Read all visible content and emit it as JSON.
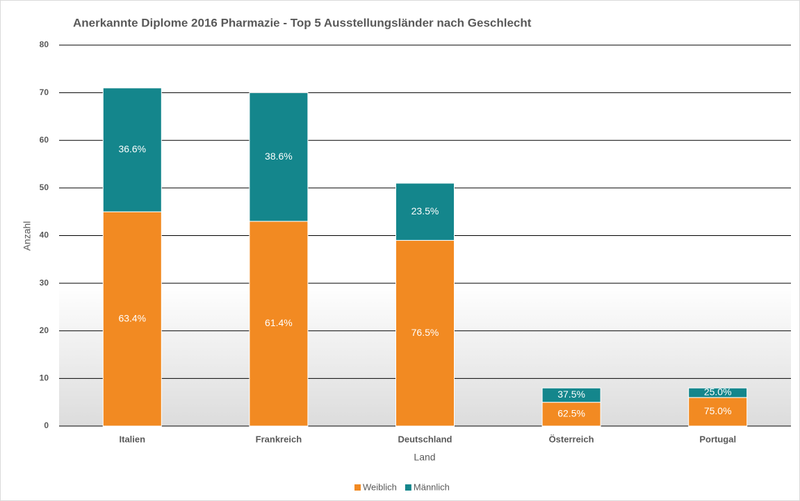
{
  "chart_data": {
    "type": "stacked_bar",
    "title": "Anerkannte Diplome 2016 Pharmazie - Top 5 Ausstellungsländer nach Geschlecht",
    "x_label": "Land",
    "y_label": "Anzahl",
    "categories": [
      "Italien",
      "Frankreich",
      "Deutschland",
      "Österreich",
      "Portugal"
    ],
    "series": [
      {
        "name": "Weiblich",
        "color": "#f28a22",
        "values": [
          45,
          43,
          39,
          5,
          6
        ],
        "share_labels": [
          "63.4%",
          "61.4%",
          "76.5%",
          "62.5%",
          "75.0%"
        ]
      },
      {
        "name": "Männlich",
        "color": "#14868c",
        "values": [
          26,
          27,
          12,
          3,
          2
        ],
        "share_labels": [
          "36.6%",
          "38.6%",
          "23.5%",
          "37.5%",
          "25.0%"
        ]
      }
    ],
    "ylim": [
      0,
      80
    ],
    "yticks": [
      0,
      10,
      20,
      30,
      40,
      50,
      60,
      70,
      80
    ],
    "grid": true,
    "legend": "bottom"
  }
}
